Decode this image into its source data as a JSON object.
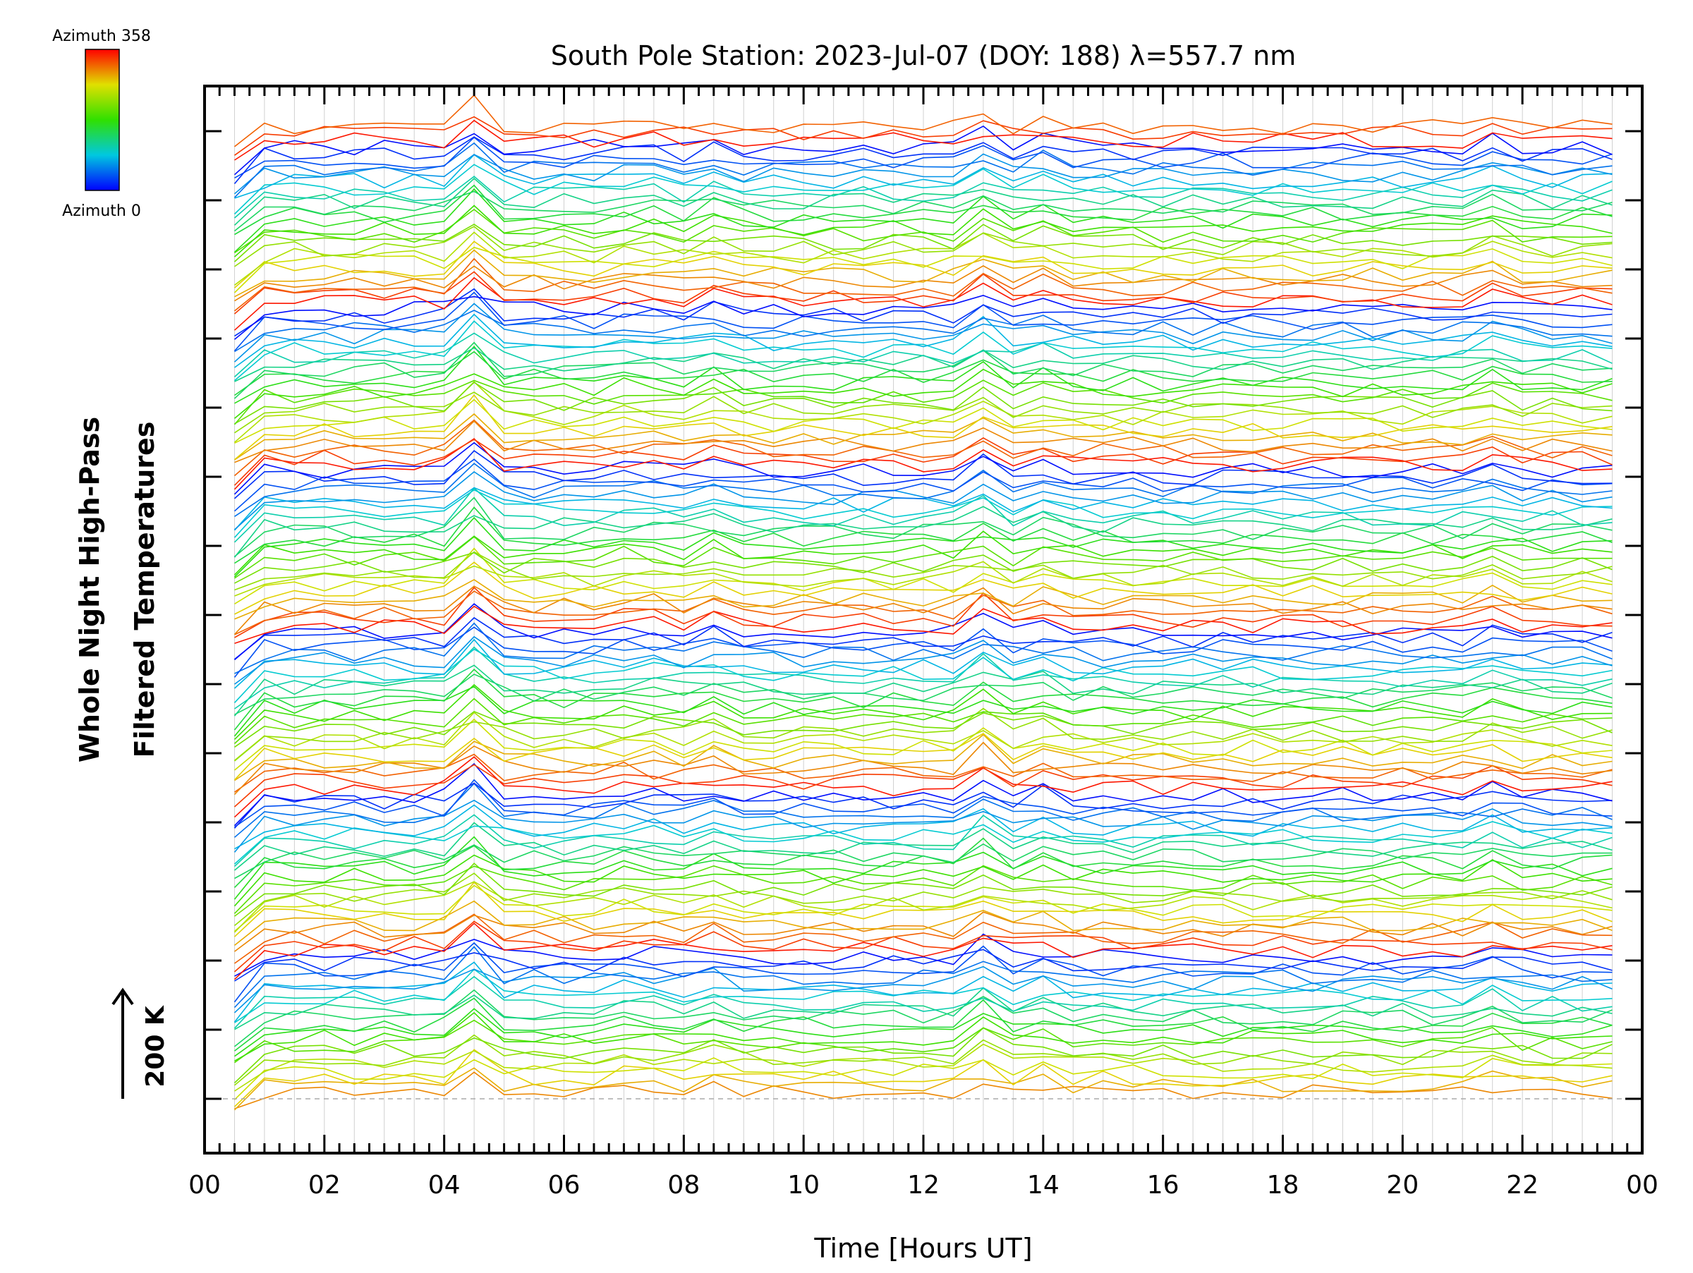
{
  "chart_data": {
    "type": "line",
    "title": "South Pole Station: 2023-Jul-07 (DOY: 188) λ=557.7 nm",
    "xlabel": "Time [Hours UT]",
    "ylabel_line1": "Whole Night High-Pass",
    "ylabel_line2": "Filtered Temperatures",
    "scale_label": "200 K",
    "x_range": [
      0,
      24
    ],
    "x_ticks": [
      "00",
      "02",
      "04",
      "06",
      "08",
      "10",
      "12",
      "14",
      "16",
      "18",
      "20",
      "22",
      "00"
    ],
    "colorbar": {
      "top_label": "Azimuth 358",
      "bottom_label": "Azimuth 0",
      "colormap": "rainbow"
    },
    "stack_groups": 6,
    "azimuth_profiles_per_group": 24,
    "time_sample_step_hours": 0.5,
    "grid": true,
    "note_shared_spikes_hours": [
      4.5,
      7.25,
      8.3,
      12.9,
      13.8,
      21.3
    ]
  },
  "colors": {
    "azimuth_0": "#0000ff",
    "azimuth_mid_low": "#00c8c8",
    "azimuth_mid": "#a0e000",
    "azimuth_mid_high": "#ffc000",
    "azimuth_358": "#ff0000",
    "grid": "#d0d0d0",
    "baseline": "#999999"
  }
}
